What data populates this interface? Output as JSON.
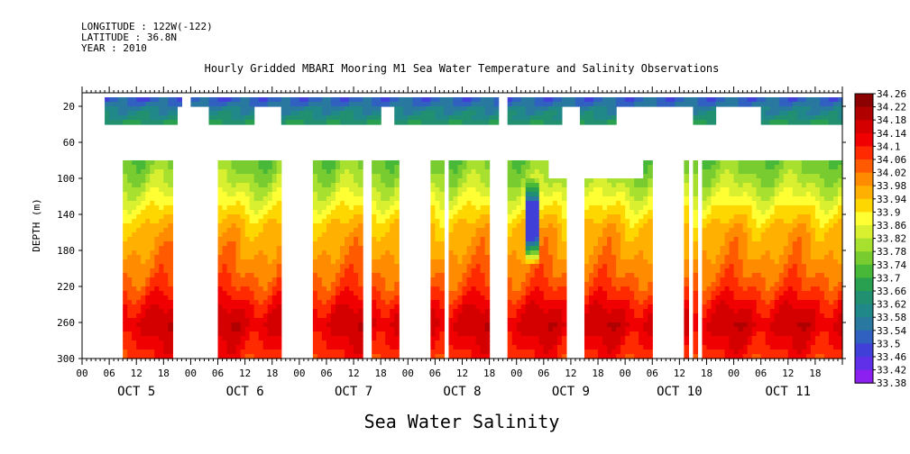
{
  "header": {
    "longitude": "LONGITUDE : 122W(-122)",
    "latitude": "LATITUDE : 36.8N",
    "year": "YEAR : 2010",
    "title": "Hourly Gridded MBARI Mooring M1 Sea Water Temperature and Salinity Observations"
  },
  "footer": {
    "variable_title": "Sea Water Salinity"
  },
  "chart_data": {
    "type": "heatmap",
    "title": "Hourly Gridded MBARI Mooring M1 Sea Water Temperature and Salinity Observations",
    "xlabel": "",
    "ylabel": "DEPTH (m)",
    "x_unit": "hour since OCT 5 00",
    "xlim": [
      0,
      168
    ],
    "ylim": [
      0,
      300
    ],
    "y_inverted": true,
    "y_ticks": [
      20,
      60,
      100,
      140,
      180,
      220,
      260,
      300
    ],
    "x_hour_ticks": [
      "00",
      "06",
      "12",
      "18"
    ],
    "day_labels": [
      {
        "label": "OCT  5",
        "hour": 12
      },
      {
        "label": "OCT  6",
        "hour": 36
      },
      {
        "label": "OCT  7",
        "hour": 60
      },
      {
        "label": "OCT  8",
        "hour": 84
      },
      {
        "label": "OCT  9",
        "hour": 108
      },
      {
        "label": "OCT 10",
        "hour": 132
      },
      {
        "label": "OCT 11",
        "hour": 156
      }
    ],
    "colorbar": {
      "levels": [
        34.26,
        34.22,
        34.18,
        34.14,
        34.1,
        34.06,
        34.02,
        33.98,
        33.94,
        33.9,
        33.86,
        33.82,
        33.78,
        33.74,
        33.7,
        33.66,
        33.62,
        33.58,
        33.54,
        33.5,
        33.46,
        33.42,
        33.38
      ],
      "colors": [
        "#8b0000",
        "#b00000",
        "#d40000",
        "#f00000",
        "#ff2a00",
        "#ff5a00",
        "#ff8c00",
        "#ffb000",
        "#ffd700",
        "#ffff33",
        "#d8f030",
        "#a8e030",
        "#78cc30",
        "#48b838",
        "#28a050",
        "#209070",
        "#208888",
        "#2878a0",
        "#3060c0",
        "#4040d8",
        "#6030e8",
        "#8c20f0",
        "#c020f8"
      ]
    },
    "upper_band": {
      "depth_top": 10,
      "depth_bottom": 40,
      "segments_hours": [
        [
          5,
          22
        ],
        [
          24,
          92
        ],
        [
          94,
          168
        ]
      ],
      "lower_gaps_hours": [
        [
          21,
          28
        ],
        [
          38,
          44
        ],
        [
          66,
          69
        ],
        [
          106,
          110
        ],
        [
          118,
          135
        ],
        [
          140,
          150
        ]
      ],
      "value_top": 33.56,
      "value_bottom": 33.72
    },
    "lower_band": {
      "depth_top": 80,
      "depth_bottom": 300,
      "segments_hours": [
        [
          9,
          20
        ],
        [
          30,
          44
        ],
        [
          51,
          62
        ],
        [
          64,
          70
        ],
        [
          77,
          80
        ],
        [
          81,
          90
        ],
        [
          94,
          107
        ],
        [
          111,
          126
        ],
        [
          133,
          134
        ],
        [
          135,
          136
        ],
        [
          137,
          168
        ]
      ],
      "notches_hours": [
        [
          72,
          76
        ],
        [
          103,
          124
        ]
      ],
      "profile": [
        [
          80,
          33.8
        ],
        [
          100,
          33.84
        ],
        [
          120,
          33.9
        ],
        [
          140,
          33.96
        ],
        [
          160,
          34.01
        ],
        [
          180,
          34.03
        ],
        [
          200,
          34.06
        ],
        [
          220,
          34.1
        ],
        [
          240,
          34.16
        ],
        [
          260,
          34.2
        ],
        [
          280,
          34.16
        ],
        [
          300,
          34.12
        ]
      ],
      "fresh_intrusion": {
        "hour": 99,
        "depth_top": 95,
        "depth_bottom": 195,
        "value": 33.52
      }
    }
  }
}
